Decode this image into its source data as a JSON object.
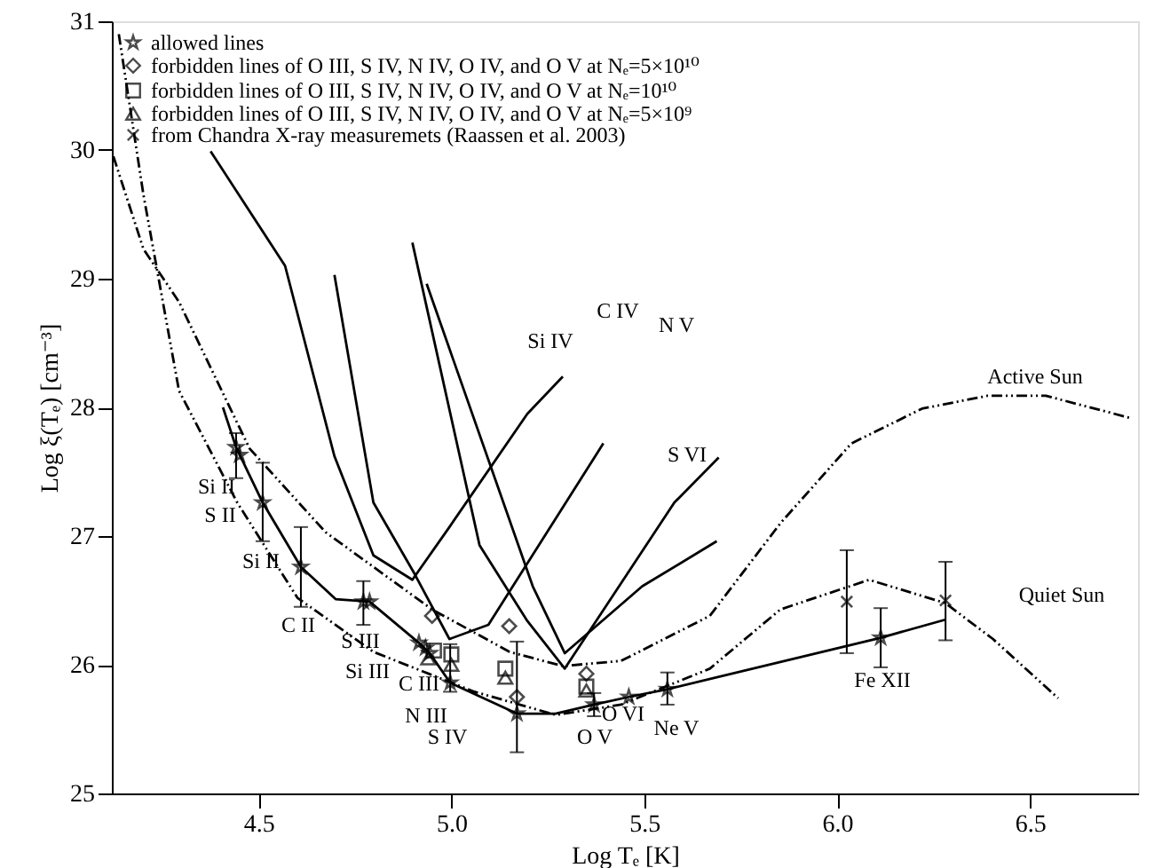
{
  "chart_data": {
    "type": "line",
    "xlabel": "Log Tₑ [K]",
    "ylabel": "Log ξ(Tₑ) [cm⁻³]",
    "xlim": [
      4.12,
      6.78
    ],
    "ylim": [
      25,
      31
    ],
    "xticks": [
      4.5,
      {
        "value": 5.0,
        "label": "5.0"
      },
      5.5,
      {
        "value": 6.0,
        "label": "6.0"
      },
      6.5
    ],
    "yticks": [
      25,
      26,
      27,
      28,
      29,
      30,
      31
    ],
    "grid": false,
    "legend": "top left",
    "series": [
      {
        "type": "scatter",
        "name": "allowed lines",
        "color": "#000000",
        "marker": "star",
        "x": [
          4.442,
          4.451,
          4.511,
          4.61,
          4.772,
          4.788,
          4.916,
          4.933,
          4.944,
          4.997,
          5.17,
          5.37,
          5.46,
          5.56,
          6.113
        ],
        "values": [
          27.69,
          27.63,
          27.26,
          26.76,
          26.49,
          26.49,
          26.17,
          26.13,
          26.09,
          25.86,
          25.62,
          25.69,
          25.75,
          25.81,
          26.21
        ],
        "errors": [
          [
            27.45,
            27.8
          ],
          null,
          [
            26.96,
            27.57
          ],
          [
            26.45,
            27.07
          ],
          [
            26.31,
            26.65
          ],
          null,
          null,
          null,
          null,
          [
            25.79,
            26.16
          ],
          [
            25.32,
            26.18
          ],
          [
            25.6,
            25.78
          ],
          null,
          [
            25.69,
            25.94
          ],
          [
            25.98,
            26.44
          ]
        ]
      },
      {
        "type": "scatter",
        "name": "forbidden lines of O III, S IV, N IV, O IV, and O V at Nₑ=5×10¹⁰",
        "color": "#000000",
        "marker": "diamond",
        "x": [
          4.95,
          5.15,
          5.17,
          5.35
        ],
        "values": [
          26.38,
          26.3,
          25.75,
          25.93
        ]
      },
      {
        "type": "scatter",
        "name": "forbidden lines of O III, S IV, N IV, O IV, and O V at Nₑ=10¹⁰",
        "color": "#000000",
        "marker": "square",
        "x": [
          4.955,
          5.0,
          5.14,
          5.35
        ],
        "values": [
          26.11,
          26.08,
          25.97,
          25.83
        ]
      },
      {
        "type": "scatter",
        "name": "forbidden lines of O III, S IV, N IV, O IV, and O V at Nₑ=5×10⁹",
        "color": "#000000",
        "marker": "triangle",
        "x": [
          4.94,
          5.0,
          5.14,
          5.35
        ],
        "values": [
          26.05,
          26.0,
          25.9,
          25.8
        ]
      },
      {
        "type": "scatter",
        "name": "from Chandra X-ray measuremets (Raassen et al. 2003)",
        "color": "#000000",
        "marker": "cross",
        "x": [
          6.025,
          6.281
        ],
        "values": [
          26.49,
          26.5
        ],
        "errors": [
          [
            26.09,
            26.89
          ],
          [
            26.19,
            26.8
          ]
        ]
      },
      {
        "color": "#000000",
        "line_style": "solid",
        "x": [
          4.408,
          4.442,
          4.511,
          4.61,
          4.7,
          4.788,
          4.916,
          4.944,
          4.997,
          5.17,
          5.27,
          5.37,
          5.46,
          5.56,
          6.113,
          6.28
        ],
        "values": [
          28.0,
          27.69,
          27.26,
          26.76,
          26.51,
          26.49,
          26.17,
          26.09,
          25.86,
          25.62,
          25.62,
          25.69,
          25.75,
          25.81,
          26.21,
          26.35
        ]
      },
      {
        "color": "#000000",
        "line_style": "solid",
        "x": [
          4.376,
          4.569,
          4.697,
          4.798,
          4.899,
          4.995,
          5.197,
          5.289
        ],
        "values": [
          29.99,
          29.1,
          27.62,
          26.85,
          26.66,
          27.07,
          27.95,
          28.24
        ]
      },
      {
        "color": "#000000",
        "line_style": "solid",
        "x": [
          4.697,
          4.798,
          4.904,
          4.995,
          5.096,
          5.394
        ],
        "values": [
          29.03,
          27.26,
          26.71,
          26.2,
          26.31,
          27.72
        ]
      },
      {
        "color": "#000000",
        "line_style": "solid",
        "x": [
          4.899,
          5.073,
          5.197,
          5.294,
          5.578,
          5.693
        ],
        "values": [
          29.28,
          26.93,
          26.34,
          25.97,
          27.26,
          27.61
        ]
      },
      {
        "color": "#000000",
        "line_style": "solid",
        "x": [
          4.936,
          5.211,
          5.294,
          5.495,
          5.688
        ],
        "values": [
          28.96,
          26.61,
          26.09,
          26.61,
          26.96
        ]
      },
      {
        "color": "#000000",
        "line_style": "dashed",
        "x": [
          4.124,
          4.202,
          4.294,
          4.477,
          4.674,
          4.95,
          5.151,
          5.289,
          5.44,
          5.67,
          5.853,
          6.037,
          6.22,
          6.39,
          6.541,
          6.757
        ],
        "values": [
          29.95,
          29.23,
          28.82,
          27.68,
          27.03,
          26.43,
          26.1,
          25.99,
          26.03,
          26.38,
          27.1,
          27.72,
          27.99,
          28.09,
          28.09,
          27.92
        ]
      },
      {
        "color": "#000000",
        "line_style": "dashed",
        "x": [
          4.138,
          4.202,
          4.294,
          4.445,
          4.601,
          4.798,
          5.06,
          5.271,
          5.44,
          5.67,
          5.853,
          6.083,
          6.28,
          6.404,
          6.573
        ],
        "values": [
          30.9,
          29.65,
          28.13,
          27.26,
          26.52,
          26.1,
          25.79,
          25.61,
          25.69,
          25.97,
          26.43,
          26.66,
          26.48,
          26.2,
          25.74
        ]
      }
    ],
    "annotations": [
      "Si IV",
      "C IV",
      "N V",
      "S VI",
      "Si II",
      "S II",
      "Si II",
      "C II",
      "S III",
      "Si III",
      "C III",
      "N III",
      "S IV",
      "O V",
      "O VI",
      "Ne V",
      "Fe XII",
      "Active Sun",
      "Quiet Sun"
    ]
  }
}
